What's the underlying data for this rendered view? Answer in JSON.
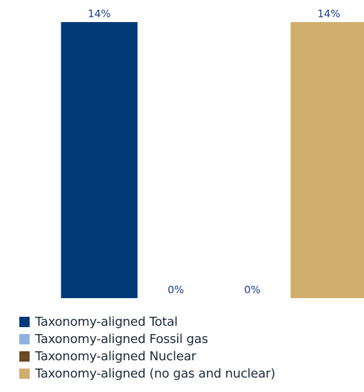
{
  "chart_data": {
    "type": "bar",
    "title": "",
    "xlabel": "",
    "ylabel": "",
    "ylim": [
      0,
      14
    ],
    "grid": false,
    "legend_position": "bottom-left",
    "categories": [
      "Taxonomy-aligned Total",
      "Taxonomy-aligned Fossil gas",
      "Taxonomy-aligned Nuclear",
      "Taxonomy-aligned (no gas and nuclear)"
    ],
    "values": [
      14,
      0,
      0,
      14
    ],
    "data_labels": [
      "14%",
      "0%",
      "0%",
      "14%"
    ],
    "series": [
      {
        "name": "Taxonomy-aligned Total",
        "value": 14,
        "label": "14%",
        "color": "#003a78"
      },
      {
        "name": "Taxonomy-aligned Fossil gas",
        "value": 0,
        "label": "0%",
        "color": "#8fb1e3"
      },
      {
        "name": "Taxonomy-aligned Nuclear",
        "value": 0,
        "label": "0%",
        "color": "#6b4a24"
      },
      {
        "name": "Taxonomy-aligned (no gas and nuclear)",
        "value": 14,
        "label": "14%",
        "color": "#d2ae6c"
      }
    ],
    "label_color": "#1e3f8f"
  },
  "legend": {
    "items": [
      {
        "label": "Taxonomy-aligned Total",
        "color": "#003a78"
      },
      {
        "label": "Taxonomy-aligned Fossil gas",
        "color": "#8fb1e3"
      },
      {
        "label": "Taxonomy-aligned Nuclear",
        "color": "#6b4a24"
      },
      {
        "label": "Taxonomy-aligned (no gas and nuclear)",
        "color": "#d2ae6c"
      }
    ]
  }
}
